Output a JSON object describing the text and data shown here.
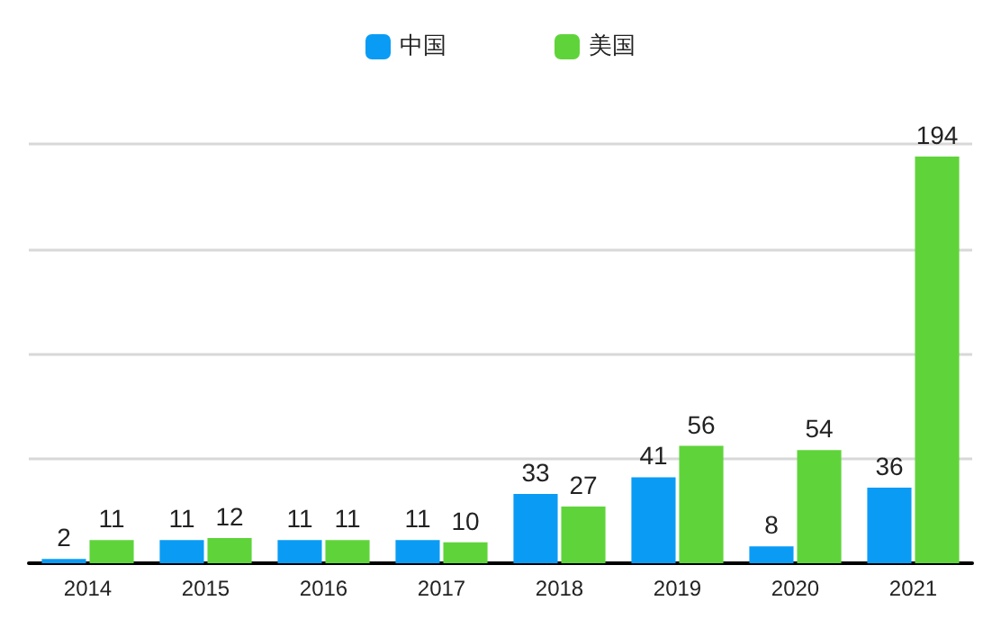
{
  "chart_data": {
    "type": "bar",
    "categories": [
      "2014",
      "2015",
      "2016",
      "2017",
      "2018",
      "2019",
      "2020",
      "2021"
    ],
    "series": [
      {
        "name": "中国",
        "color": "#0a9cf5",
        "values": [
          2,
          11,
          11,
          11,
          33,
          41,
          8,
          36
        ]
      },
      {
        "name": "美国",
        "color": "#5fd43a",
        "values": [
          11,
          12,
          11,
          10,
          27,
          56,
          54,
          194
        ]
      }
    ],
    "ylim": [
      0,
      200
    ],
    "yticks": [
      {
        "value": 0,
        "label": null
      },
      {
        "value": 50,
        "label": null
      },
      {
        "value": 100,
        "label": null
      },
      {
        "value": 150,
        "label": null
      },
      {
        "value": 200,
        "label": null
      }
    ],
    "tick_labels": "x",
    "grid": "y",
    "legend": "top",
    "data_labels": true
  }
}
